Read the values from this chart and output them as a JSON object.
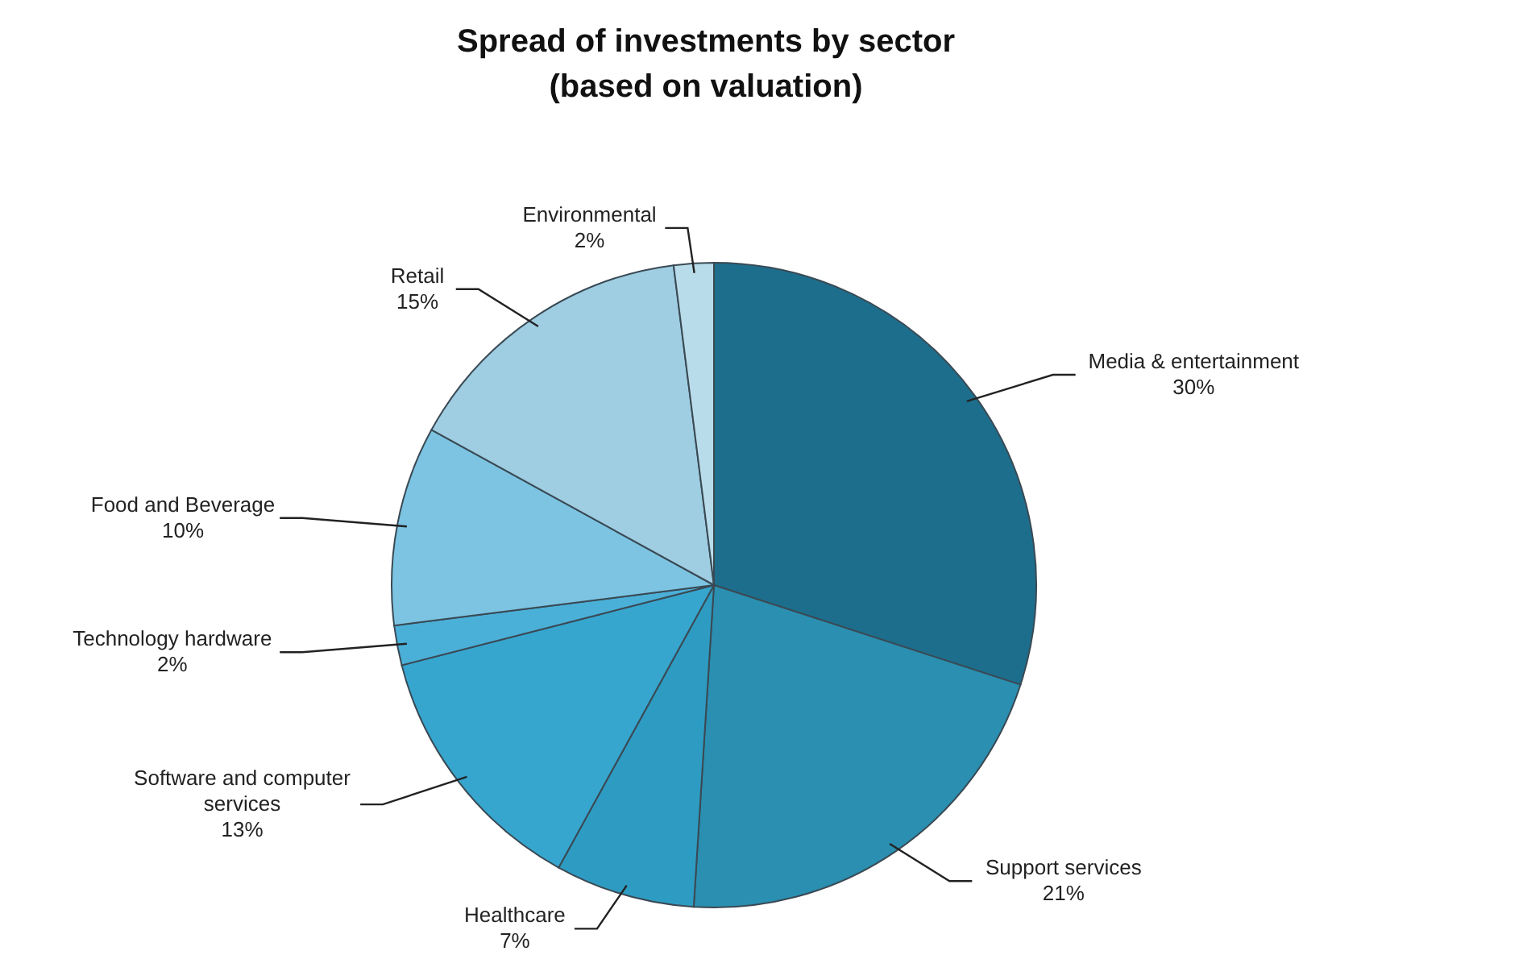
{
  "chart_data": {
    "type": "pie",
    "title": "Spread of investments by sector\n(based on valuation)",
    "categories": [
      "Media & entertainment",
      "Support services",
      "Healthcare",
      "Software and computer services",
      "Technology hardware",
      "Food and Beverage",
      "Retail",
      "Environmental"
    ],
    "values": [
      30,
      21,
      7,
      13,
      2,
      10,
      15,
      2
    ],
    "value_labels": [
      "30%",
      "21%",
      "7%",
      "13%",
      "2%",
      "10%",
      "15%",
      "2%"
    ],
    "colors": [
      "#1d6e8c",
      "#2a8fb0",
      "#2e9cc2",
      "#36a6cf",
      "#4bb0d8",
      "#7cc4e2",
      "#9fcde2",
      "#b9dcea"
    ],
    "legend": false
  }
}
